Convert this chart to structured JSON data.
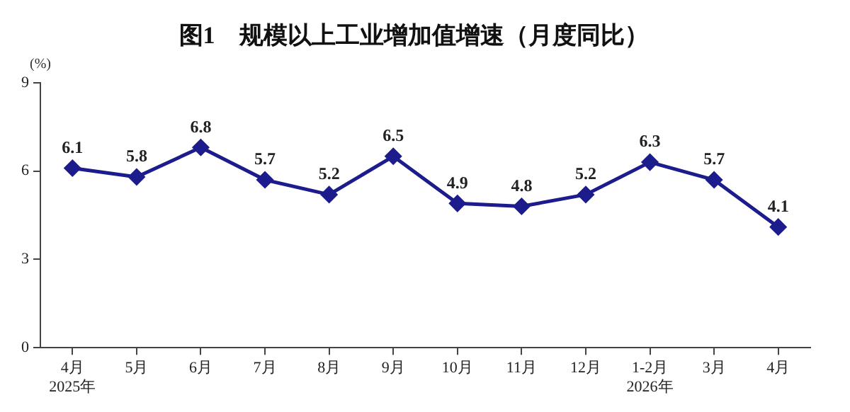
{
  "chart_data": {
    "type": "line",
    "title": "图1　规模以上工业增加值增速（月度同比）",
    "ylabel": "(%)",
    "categories": [
      "4月\n2025年",
      "5月",
      "6月",
      "7月",
      "8月",
      "9月",
      "10月",
      "11月",
      "12月",
      "1-2月\n2026年",
      "3月",
      "4月"
    ],
    "series": [
      {
        "color": "#1c1c8c",
        "values": [
          6.1,
          5.8,
          6.8,
          5.7,
          5.2,
          6.5,
          4.9,
          4.8,
          5.2,
          6.3,
          5.7,
          4.1
        ]
      }
    ],
    "ylim": [
      0,
      9
    ],
    "yticks": [
      0,
      3,
      6,
      9
    ],
    "grid": false,
    "legend": false,
    "marker": "diamond",
    "line_style": "solid",
    "data_labels": true
  }
}
